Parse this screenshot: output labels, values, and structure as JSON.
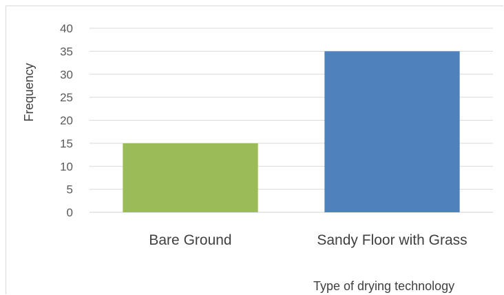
{
  "chart_data": {
    "type": "bar",
    "title": "",
    "xlabel": "Type of drying technology",
    "ylabel": "Frequency",
    "categories": [
      "Bare Ground",
      "Sandy Floor with Grass"
    ],
    "values": [
      15,
      35
    ],
    "bar_colors": [
      "#9bbb59",
      "#4f81bd"
    ],
    "ylim": [
      0,
      40
    ],
    "yticks": [
      0,
      5,
      10,
      15,
      20,
      25,
      30,
      35,
      40
    ],
    "grid": true,
    "legend": "none"
  }
}
